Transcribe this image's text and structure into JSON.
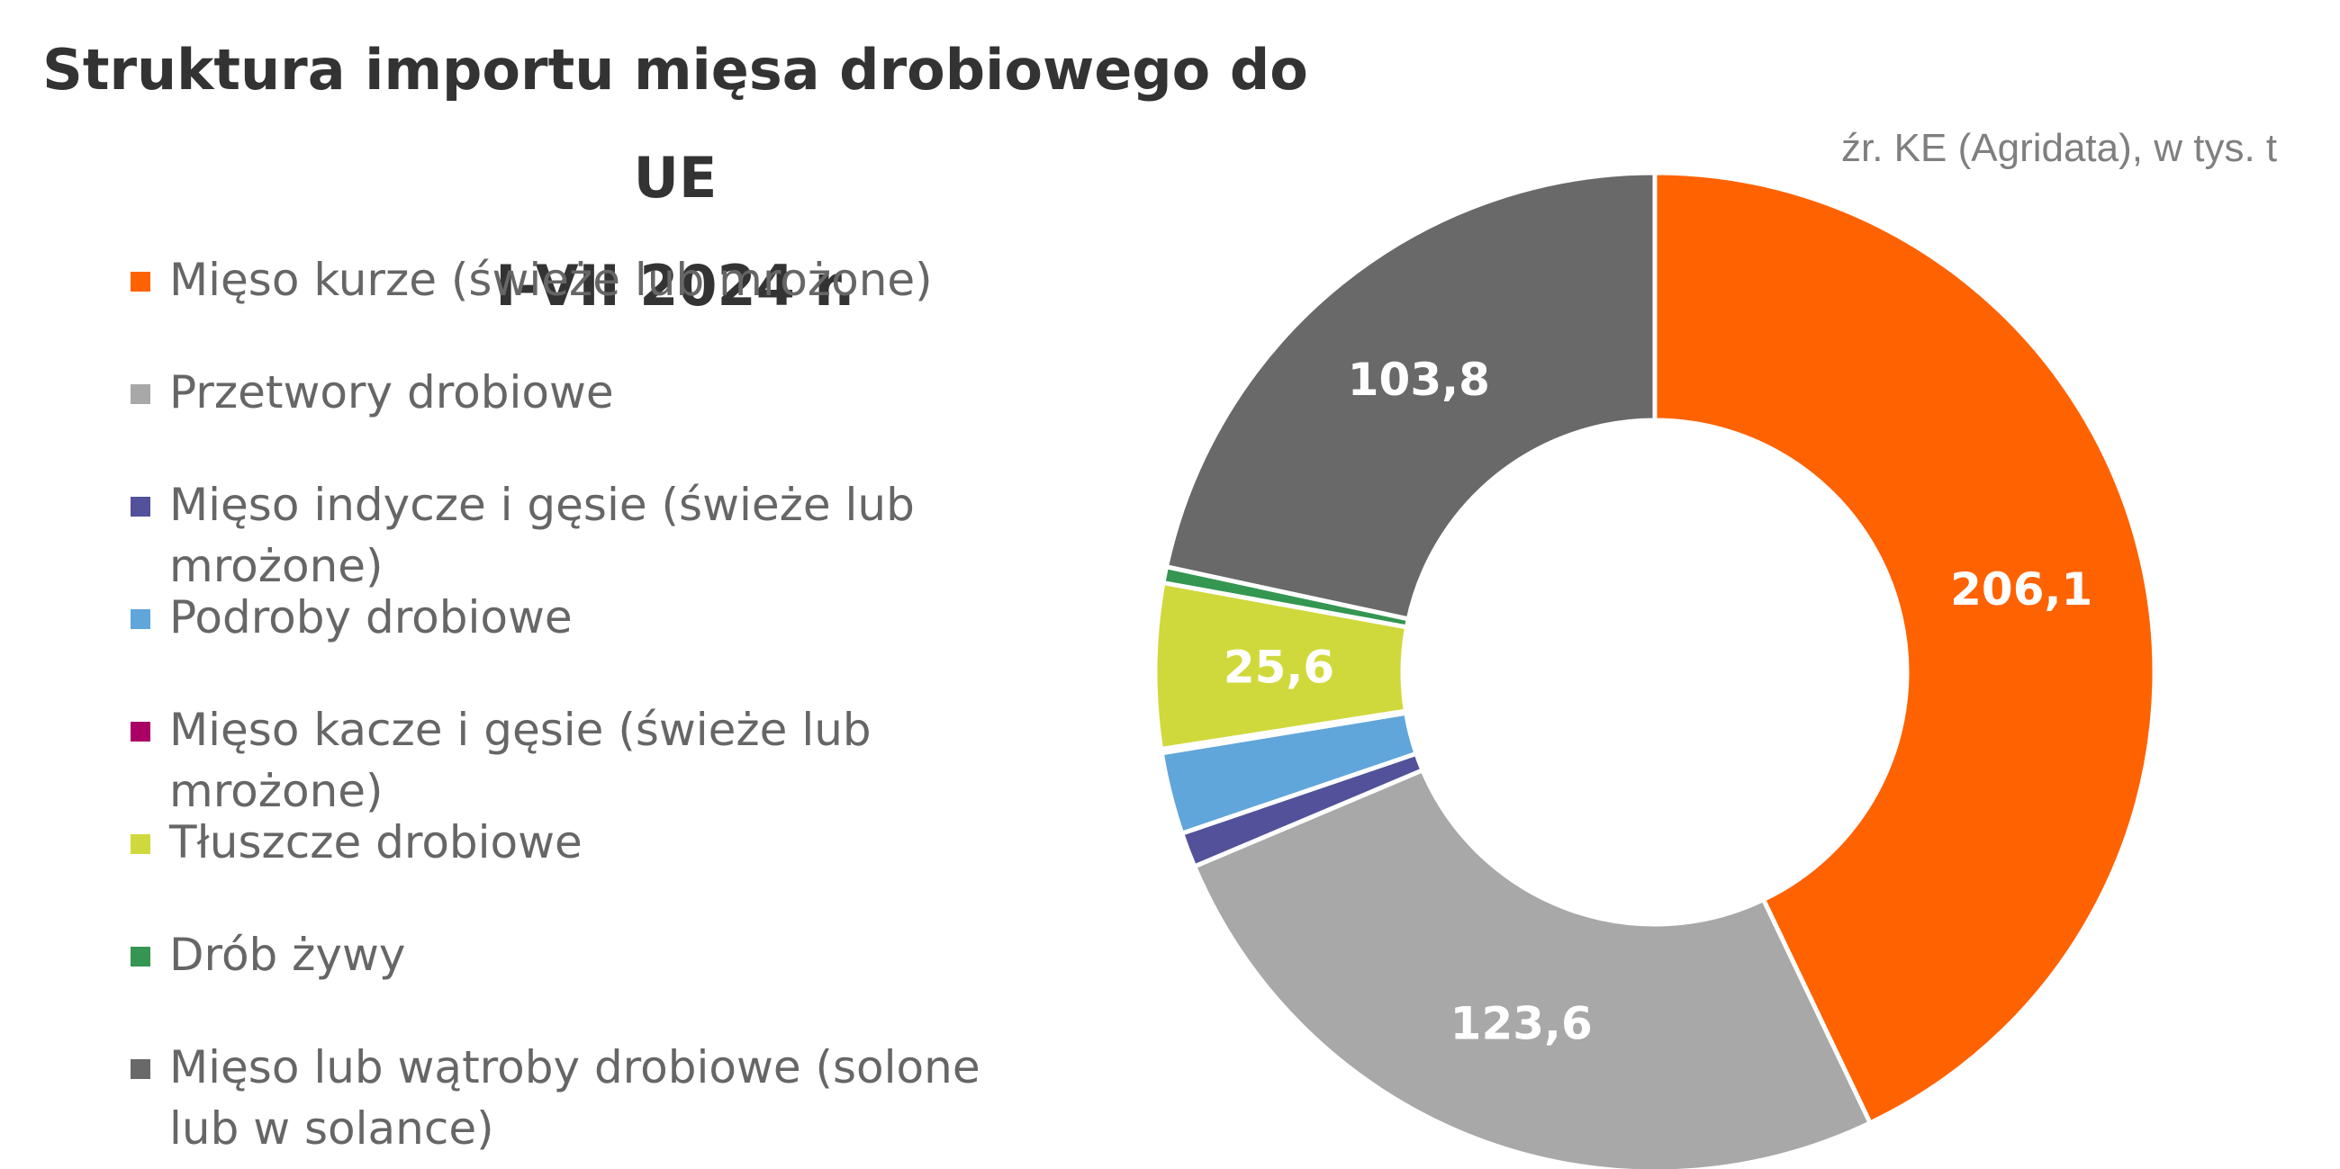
{
  "title": {
    "line1": "Struktura importu mięsa drobiowego do UE",
    "line2": "I-VII 2024 r."
  },
  "source": "źr. KE (Agridata), w tys. t",
  "chart_data": {
    "type": "pie",
    "donut": true,
    "categories": [
      "Mięso kurze (świeże lub mrożone)",
      "Przetwory drobiowe",
      "Mięso indycze i gęsie (świeże lub mrożone)",
      "Podroby drobiowe",
      "Mięso kacze i gęsie (świeże lub mrożone)",
      "Tłuszcze drobiowe",
      "Drób żywy",
      "Mięso lub wątroby drobiowe (solone lub w solance)"
    ],
    "values": [
      206.1,
      123.6,
      5.4,
      12.7,
      0.6,
      25.6,
      2.5,
      103.8
    ],
    "data_labels": [
      "206,1",
      "123,6",
      "",
      "",
      "",
      "25,6",
      "",
      "103,8"
    ],
    "colors": [
      "#ff6200",
      "#a8a8a8",
      "#525199",
      "#60a6da",
      "#aa0066",
      "#d0d93c",
      "#349651",
      "#696969"
    ],
    "legend_position": "left"
  }
}
